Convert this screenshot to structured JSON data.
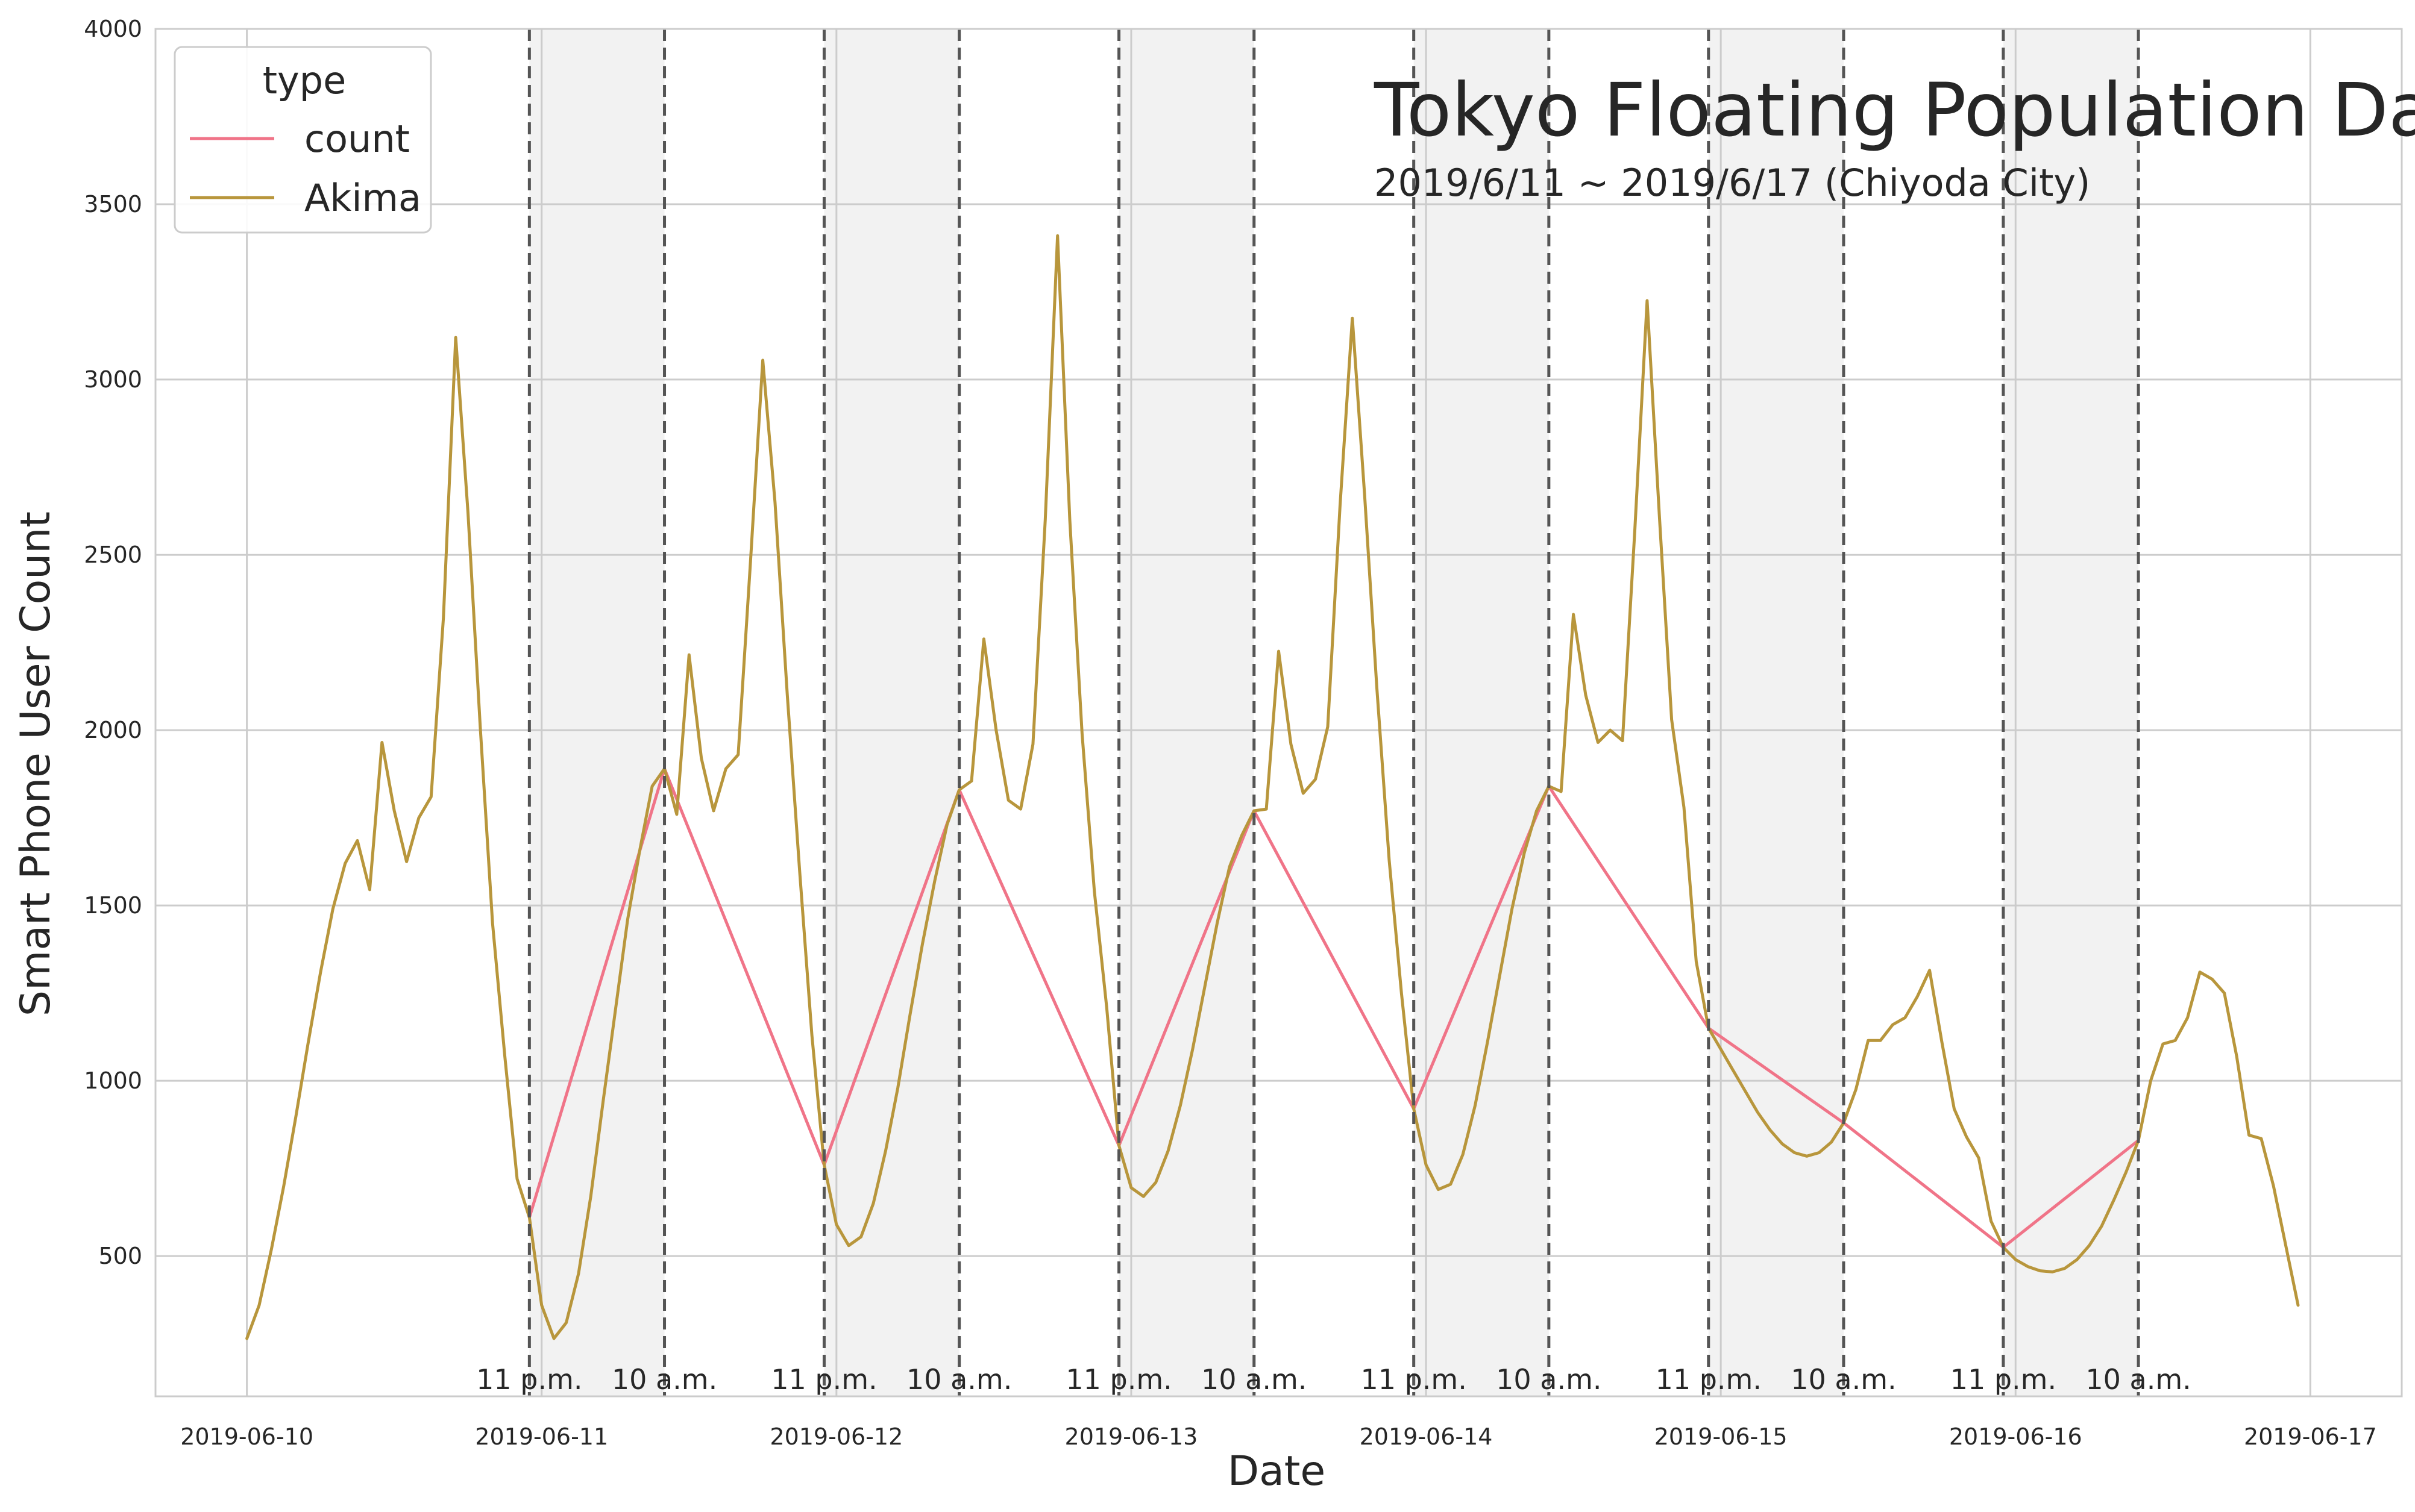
{
  "chart_data": {
    "type": "line",
    "title": "Tokyo Floating Population Data",
    "subtitle": "2019/6/11 ~ 2019/6/17 (Chiyoda City)",
    "xlabel": "Date",
    "ylabel": "Smart Phone User Count",
    "x_ticks": [
      "2019-06-10",
      "2019-06-11",
      "2019-06-12",
      "2019-06-13",
      "2019-06-14",
      "2019-06-15",
      "2019-06-16",
      "2019-06-17"
    ],
    "y_ticks": [
      500,
      1000,
      1500,
      2000,
      2500,
      3000,
      3500,
      4000
    ],
    "xlim": [
      -0.31,
      7.31
    ],
    "ylim": [
      100,
      4000
    ],
    "grid": true,
    "legend": {
      "title": "type",
      "placement": "top-left",
      "entries": [
        "count",
        "Akima"
      ]
    },
    "colors": {
      "count": "#f07488",
      "Akima": "#b8963c",
      "marker_line": "#555555",
      "night_shade": "#f2f2f2",
      "grid": "#cccccc"
    },
    "night_periods": [
      {
        "start": "2019-06-10 23:00",
        "end": "2019-06-11 10:00",
        "start_label": "11 p.m.",
        "end_label": "10 a.m."
      },
      {
        "start": "2019-06-11 23:00",
        "end": "2019-06-12 10:00",
        "start_label": "11 p.m.",
        "end_label": "10 a.m."
      },
      {
        "start": "2019-06-12 23:00",
        "end": "2019-06-13 10:00",
        "start_label": "11 p.m.",
        "end_label": "10 a.m."
      },
      {
        "start": "2019-06-13 23:00",
        "end": "2019-06-14 10:00",
        "start_label": "11 p.m.",
        "end_label": "10 a.m."
      },
      {
        "start": "2019-06-14 23:00",
        "end": "2019-06-15 10:00",
        "start_label": "11 p.m.",
        "end_label": "10 a.m."
      },
      {
        "start": "2019-06-15 23:00",
        "end": "2019-06-16 10:00",
        "start_label": "11 p.m.",
        "end_label": "10 a.m."
      }
    ],
    "series": [
      {
        "name": "count",
        "points": [
          [
            "2019-06-10 23:00",
            610
          ],
          [
            "2019-06-11 10:00",
            1890
          ],
          [
            "2019-06-11 23:00",
            760
          ],
          [
            "2019-06-12 10:00",
            1830
          ],
          [
            "2019-06-12 23:00",
            815
          ],
          [
            "2019-06-13 10:00",
            1770
          ],
          [
            "2019-06-13 23:00",
            920
          ],
          [
            "2019-06-14 10:00",
            1840
          ],
          [
            "2019-06-14 23:00",
            1150
          ],
          [
            "2019-06-15 10:00",
            880
          ],
          [
            "2019-06-15 23:00",
            525
          ],
          [
            "2019-06-16 10:00",
            830
          ]
        ]
      },
      {
        "name": "Akima",
        "points": [
          [
            "2019-06-10 00:00",
            265
          ],
          [
            "2019-06-10 01:00",
            360
          ],
          [
            "2019-06-10 02:00",
            520
          ],
          [
            "2019-06-10 03:00",
            700
          ],
          [
            "2019-06-10 04:00",
            900
          ],
          [
            "2019-06-10 05:00",
            1110
          ],
          [
            "2019-06-10 06:00",
            1310
          ],
          [
            "2019-06-10 07:00",
            1490
          ],
          [
            "2019-06-10 08:00",
            1620
          ],
          [
            "2019-06-10 09:00",
            1685
          ],
          [
            "2019-06-10 10:00",
            1545
          ],
          [
            "2019-06-10 11:00",
            1965
          ],
          [
            "2019-06-10 12:00",
            1770
          ],
          [
            "2019-06-10 13:00",
            1625
          ],
          [
            "2019-06-10 14:00",
            1750
          ],
          [
            "2019-06-10 15:00",
            1810
          ],
          [
            "2019-06-10 16:00",
            2320
          ],
          [
            "2019-06-10 17:00",
            3120
          ],
          [
            "2019-06-10 18:00",
            2620
          ],
          [
            "2019-06-10 19:00",
            2010
          ],
          [
            "2019-06-10 20:00",
            1450
          ],
          [
            "2019-06-10 21:00",
            1070
          ],
          [
            "2019-06-10 22:00",
            720
          ],
          [
            "2019-06-10 23:00",
            610
          ],
          [
            "2019-06-11 00:00",
            360
          ],
          [
            "2019-06-11 01:00",
            265
          ],
          [
            "2019-06-11 02:00",
            310
          ],
          [
            "2019-06-11 03:00",
            450
          ],
          [
            "2019-06-11 04:00",
            670
          ],
          [
            "2019-06-11 05:00",
            940
          ],
          [
            "2019-06-11 06:00",
            1200
          ],
          [
            "2019-06-11 07:00",
            1460
          ],
          [
            "2019-06-11 08:00",
            1660
          ],
          [
            "2019-06-11 09:00",
            1840
          ],
          [
            "2019-06-11 10:00",
            1890
          ],
          [
            "2019-06-11 11:00",
            1760
          ],
          [
            "2019-06-11 12:00",
            2215
          ],
          [
            "2019-06-11 13:00",
            1920
          ],
          [
            "2019-06-11 14:00",
            1770
          ],
          [
            "2019-06-11 15:00",
            1890
          ],
          [
            "2019-06-11 16:00",
            1930
          ],
          [
            "2019-06-11 17:00",
            2480
          ],
          [
            "2019-06-11 18:00",
            3055
          ],
          [
            "2019-06-11 19:00",
            2650
          ],
          [
            "2019-06-11 20:00",
            2100
          ],
          [
            "2019-06-11 21:00",
            1600
          ],
          [
            "2019-06-11 22:00",
            1130
          ],
          [
            "2019-06-11 23:00",
            760
          ],
          [
            "2019-06-12 00:00",
            590
          ],
          [
            "2019-06-12 01:00",
            530
          ],
          [
            "2019-06-12 02:00",
            555
          ],
          [
            "2019-06-12 03:00",
            650
          ],
          [
            "2019-06-12 04:00",
            800
          ],
          [
            "2019-06-12 05:00",
            980
          ],
          [
            "2019-06-12 06:00",
            1190
          ],
          [
            "2019-06-12 07:00",
            1390
          ],
          [
            "2019-06-12 08:00",
            1570
          ],
          [
            "2019-06-12 09:00",
            1730
          ],
          [
            "2019-06-12 10:00",
            1830
          ],
          [
            "2019-06-12 11:00",
            1855
          ],
          [
            "2019-06-12 12:00",
            2260
          ],
          [
            "2019-06-12 13:00",
            2000
          ],
          [
            "2019-06-12 14:00",
            1800
          ],
          [
            "2019-06-12 15:00",
            1775
          ],
          [
            "2019-06-12 16:00",
            1960
          ],
          [
            "2019-06-12 17:00",
            2600
          ],
          [
            "2019-06-12 18:00",
            3410
          ],
          [
            "2019-06-12 19:00",
            2600
          ],
          [
            "2019-06-12 20:00",
            1990
          ],
          [
            "2019-06-12 21:00",
            1540
          ],
          [
            "2019-06-12 22:00",
            1210
          ],
          [
            "2019-06-12 23:00",
            815
          ],
          [
            "2019-06-13 00:00",
            695
          ],
          [
            "2019-06-13 01:00",
            670
          ],
          [
            "2019-06-13 02:00",
            710
          ],
          [
            "2019-06-13 03:00",
            800
          ],
          [
            "2019-06-13 04:00",
            930
          ],
          [
            "2019-06-13 05:00",
            1090
          ],
          [
            "2019-06-13 06:00",
            1270
          ],
          [
            "2019-06-13 07:00",
            1450
          ],
          [
            "2019-06-13 08:00",
            1610
          ],
          [
            "2019-06-13 09:00",
            1700
          ],
          [
            "2019-06-13 10:00",
            1770
          ],
          [
            "2019-06-13 11:00",
            1775
          ],
          [
            "2019-06-13 12:00",
            2225
          ],
          [
            "2019-06-13 13:00",
            1960
          ],
          [
            "2019-06-13 14:00",
            1820
          ],
          [
            "2019-06-13 15:00",
            1860
          ],
          [
            "2019-06-13 16:00",
            2010
          ],
          [
            "2019-06-13 17:00",
            2640
          ],
          [
            "2019-06-13 18:00",
            3175
          ],
          [
            "2019-06-13 19:00",
            2670
          ],
          [
            "2019-06-13 20:00",
            2120
          ],
          [
            "2019-06-13 21:00",
            1630
          ],
          [
            "2019-06-13 22:00",
            1250
          ],
          [
            "2019-06-13 23:00",
            920
          ],
          [
            "2019-06-14 00:00",
            760
          ],
          [
            "2019-06-14 01:00",
            690
          ],
          [
            "2019-06-14 02:00",
            705
          ],
          [
            "2019-06-14 03:00",
            790
          ],
          [
            "2019-06-14 04:00",
            930
          ],
          [
            "2019-06-14 05:00",
            1110
          ],
          [
            "2019-06-14 06:00",
            1300
          ],
          [
            "2019-06-14 07:00",
            1490
          ],
          [
            "2019-06-14 08:00",
            1650
          ],
          [
            "2019-06-14 09:00",
            1770
          ],
          [
            "2019-06-14 10:00",
            1840
          ],
          [
            "2019-06-14 11:00",
            1825
          ],
          [
            "2019-06-14 12:00",
            2330
          ],
          [
            "2019-06-14 13:00",
            2100
          ],
          [
            "2019-06-14 14:00",
            1965
          ],
          [
            "2019-06-14 15:00",
            2000
          ],
          [
            "2019-06-14 16:00",
            1970
          ],
          [
            "2019-06-14 17:00",
            2570
          ],
          [
            "2019-06-14 18:00",
            3225
          ],
          [
            "2019-06-14 19:00",
            2610
          ],
          [
            "2019-06-14 20:00",
            2030
          ],
          [
            "2019-06-14 21:00",
            1780
          ],
          [
            "2019-06-14 22:00",
            1340
          ],
          [
            "2019-06-14 23:00",
            1150
          ],
          [
            "2019-06-15 00:00",
            1090
          ],
          [
            "2019-06-15 01:00",
            1030
          ],
          [
            "2019-06-15 02:00",
            970
          ],
          [
            "2019-06-15 03:00",
            910
          ],
          [
            "2019-06-15 04:00",
            860
          ],
          [
            "2019-06-15 05:00",
            820
          ],
          [
            "2019-06-15 06:00",
            795
          ],
          [
            "2019-06-15 07:00",
            785
          ],
          [
            "2019-06-15 08:00",
            795
          ],
          [
            "2019-06-15 09:00",
            825
          ],
          [
            "2019-06-15 10:00",
            880
          ],
          [
            "2019-06-15 11:00",
            975
          ],
          [
            "2019-06-15 12:00",
            1115
          ],
          [
            "2019-06-15 13:00",
            1115
          ],
          [
            "2019-06-15 14:00",
            1160
          ],
          [
            "2019-06-15 15:00",
            1180
          ],
          [
            "2019-06-15 16:00",
            1240
          ],
          [
            "2019-06-15 17:00",
            1315
          ],
          [
            "2019-06-15 18:00",
            1110
          ],
          [
            "2019-06-15 19:00",
            920
          ],
          [
            "2019-06-15 20:00",
            840
          ],
          [
            "2019-06-15 21:00",
            780
          ],
          [
            "2019-06-15 22:00",
            600
          ],
          [
            "2019-06-15 23:00",
            525
          ],
          [
            "2019-06-16 00:00",
            490
          ],
          [
            "2019-06-16 01:00",
            470
          ],
          [
            "2019-06-16 02:00",
            458
          ],
          [
            "2019-06-16 03:00",
            455
          ],
          [
            "2019-06-16 04:00",
            465
          ],
          [
            "2019-06-16 05:00",
            490
          ],
          [
            "2019-06-16 06:00",
            530
          ],
          [
            "2019-06-16 07:00",
            585
          ],
          [
            "2019-06-16 08:00",
            660
          ],
          [
            "2019-06-16 09:00",
            740
          ],
          [
            "2019-06-16 10:00",
            830
          ],
          [
            "2019-06-16 11:00",
            1000
          ],
          [
            "2019-06-16 12:00",
            1105
          ],
          [
            "2019-06-16 13:00",
            1115
          ],
          [
            "2019-06-16 14:00",
            1180
          ],
          [
            "2019-06-16 15:00",
            1310
          ],
          [
            "2019-06-16 16:00",
            1290
          ],
          [
            "2019-06-16 17:00",
            1250
          ],
          [
            "2019-06-16 18:00",
            1070
          ],
          [
            "2019-06-16 19:00",
            845
          ],
          [
            "2019-06-16 20:00",
            835
          ],
          [
            "2019-06-16 21:00",
            700
          ],
          [
            "2019-06-16 22:00",
            530
          ],
          [
            "2019-06-16 23:00",
            360
          ]
        ]
      }
    ]
  }
}
